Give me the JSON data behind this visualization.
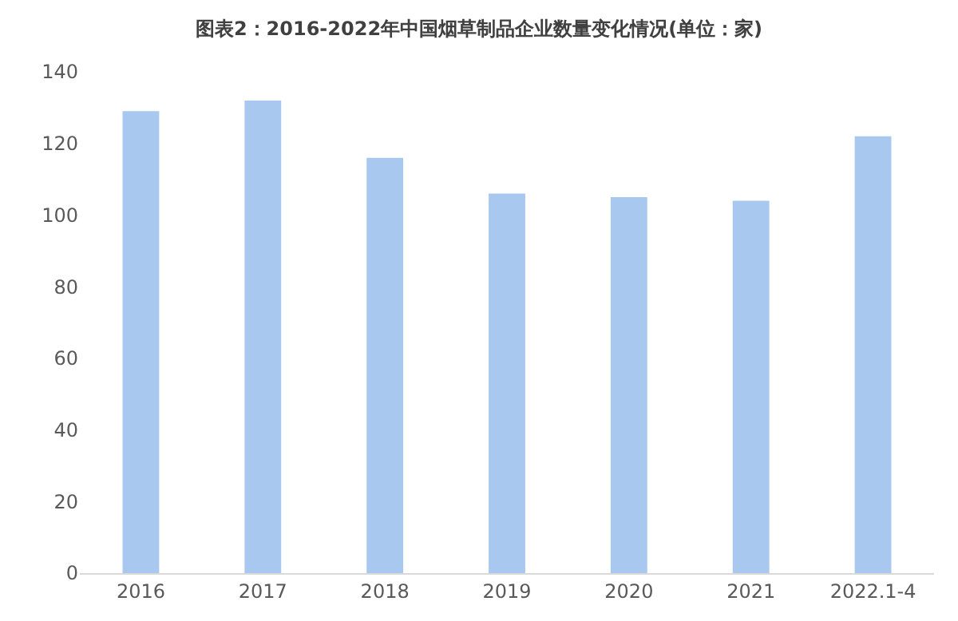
{
  "chart_data": {
    "type": "bar",
    "title": "图表2：2016-2022年中国烟草制品企业数量变化情况(单位：家)",
    "categories": [
      "2016",
      "2017",
      "2018",
      "2019",
      "2020",
      "2021",
      "2022.1-4"
    ],
    "values": [
      129,
      132,
      116,
      106,
      105,
      104,
      122
    ],
    "color": "#a9c8f0",
    "ylim": [
      0,
      140
    ],
    "yticks": [
      0,
      20,
      40,
      60,
      80,
      100,
      120,
      140
    ],
    "grid": false
  }
}
